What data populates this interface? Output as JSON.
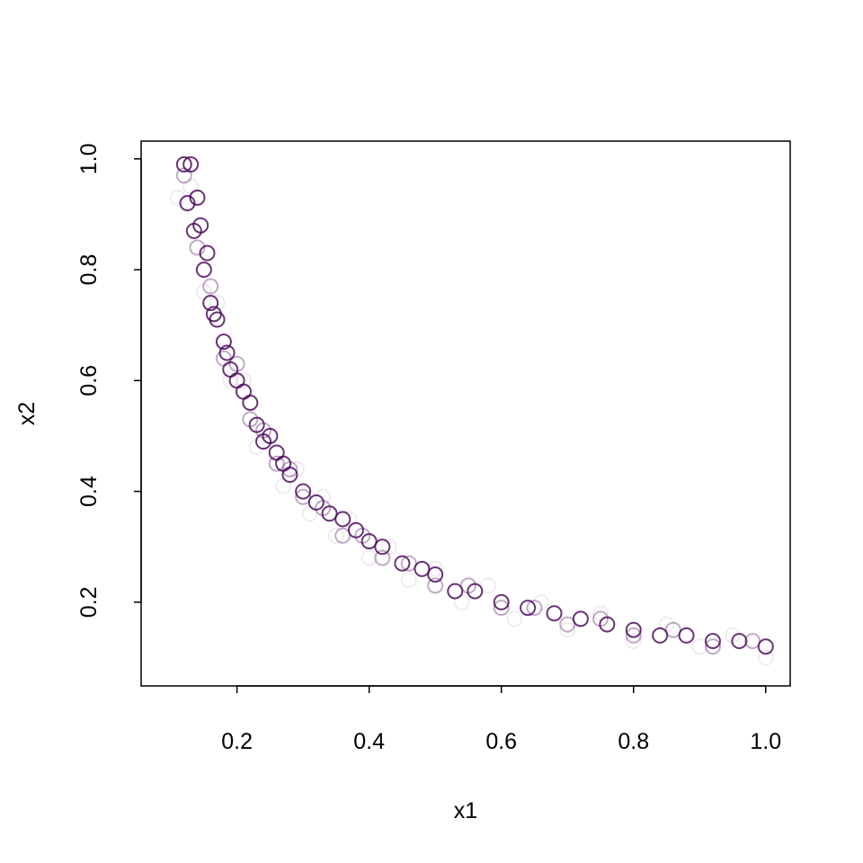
{
  "chart_data": {
    "type": "scatter",
    "xlabel": "x1",
    "ylabel": "x2",
    "xlim": [
      0.055,
      1.037
    ],
    "ylim": [
      0.049,
      1.032
    ],
    "xticks": [
      0.2,
      0.4,
      0.6,
      0.8,
      {
        "value": 1,
        "label": "1.0"
      }
    ],
    "yticks": [
      0.2,
      0.4,
      0.6,
      0.8,
      {
        "value": 1,
        "label": "1.0"
      }
    ],
    "series": [
      {
        "color": "#44015414",
        "x": [
          0.11,
          0.13,
          0.15,
          0.17,
          0.19,
          0.21,
          0.23,
          0.25,
          0.27,
          0.29,
          0.31,
          0.33,
          0.35,
          0.37,
          0.4,
          0.43,
          0.46,
          0.5,
          0.54,
          0.58,
          0.62,
          0.66,
          0.7,
          0.75,
          0.8,
          0.85,
          0.9,
          0.95,
          1.0
        ],
        "values": [
          0.93,
          0.95,
          0.76,
          0.74,
          0.6,
          0.6,
          0.48,
          0.5,
          0.41,
          0.44,
          0.36,
          0.39,
          0.32,
          0.35,
          0.28,
          0.3,
          0.24,
          0.26,
          0.2,
          0.23,
          0.17,
          0.2,
          0.15,
          0.18,
          0.13,
          0.16,
          0.12,
          0.14,
          0.1
        ]
      },
      {
        "color": "#44015455",
        "x": [
          0.12,
          0.14,
          0.16,
          0.18,
          0.2,
          0.22,
          0.24,
          0.26,
          0.28,
          0.3,
          0.33,
          0.36,
          0.39,
          0.42,
          0.46,
          0.5,
          0.55,
          0.6,
          0.65,
          0.7,
          0.75,
          0.8,
          0.86,
          0.92,
          0.98
        ],
        "values": [
          0.97,
          0.84,
          0.77,
          0.64,
          0.63,
          0.53,
          0.51,
          0.45,
          0.44,
          0.39,
          0.37,
          0.32,
          0.32,
          0.28,
          0.27,
          0.23,
          0.23,
          0.19,
          0.19,
          0.16,
          0.17,
          0.14,
          0.15,
          0.12,
          0.13
        ]
      },
      {
        "color": "#440154cc",
        "x": [
          0.12,
          0.13,
          0.125,
          0.14,
          0.135,
          0.145,
          0.15,
          0.155,
          0.16,
          0.165,
          0.17,
          0.18,
          0.185,
          0.19,
          0.2,
          0.21,
          0.22,
          0.23,
          0.24,
          0.25,
          0.26,
          0.27,
          0.28,
          0.3,
          0.32,
          0.34,
          0.36,
          0.38,
          0.4,
          0.42,
          0.45,
          0.48,
          0.5,
          0.53,
          0.56,
          0.6,
          0.64,
          0.68,
          0.72,
          0.76,
          0.8,
          0.84,
          0.88,
          0.92,
          0.96,
          1.0
        ],
        "values": [
          0.99,
          0.99,
          0.92,
          0.93,
          0.87,
          0.88,
          0.8,
          0.83,
          0.74,
          0.72,
          0.71,
          0.67,
          0.65,
          0.62,
          0.6,
          0.58,
          0.56,
          0.52,
          0.49,
          0.5,
          0.47,
          0.45,
          0.43,
          0.4,
          0.38,
          0.36,
          0.35,
          0.33,
          0.31,
          0.3,
          0.27,
          0.26,
          0.25,
          0.22,
          0.22,
          0.2,
          0.19,
          0.18,
          0.17,
          0.16,
          0.15,
          0.14,
          0.14,
          0.13,
          0.13,
          0.12
        ]
      }
    ]
  }
}
